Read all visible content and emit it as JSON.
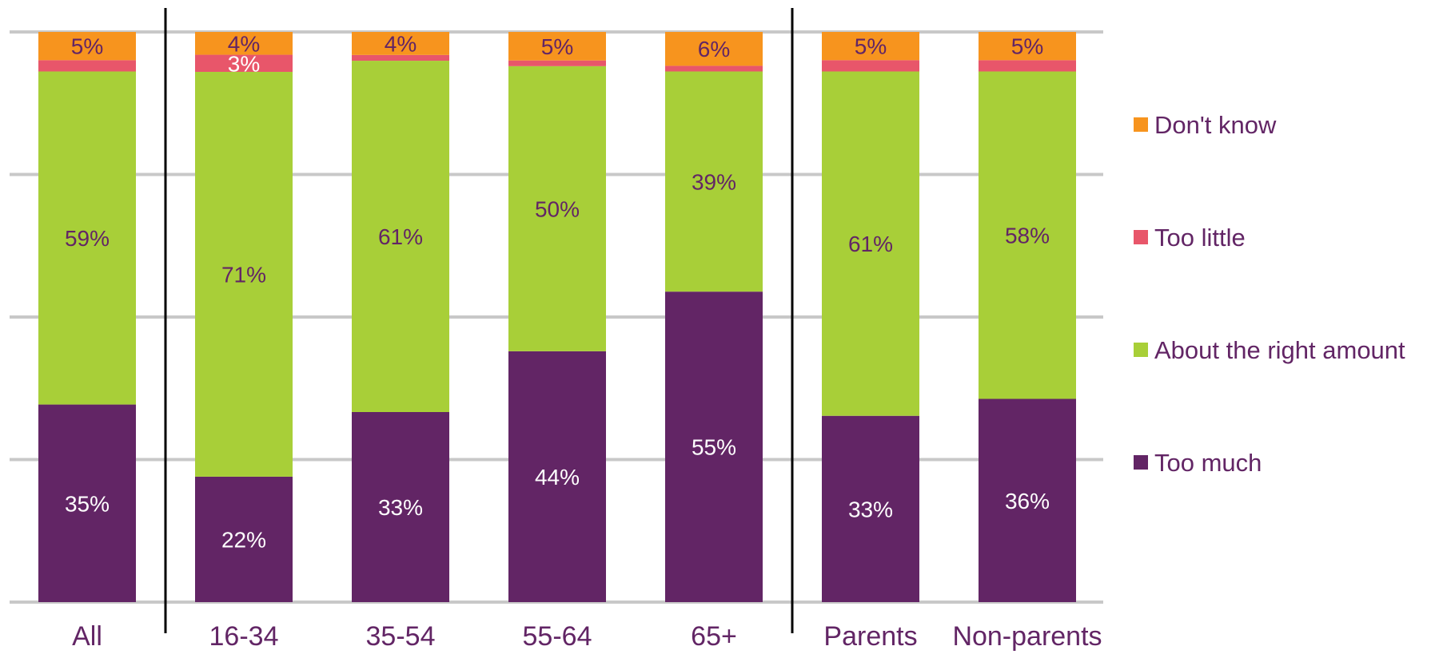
{
  "chart_data": {
    "type": "bar",
    "stacked": true,
    "percent_scale": true,
    "categories": [
      "All",
      "16-34",
      "35-54",
      "55-64",
      "65+",
      "Parents",
      "Non-parents"
    ],
    "group_separators_after": [
      "All",
      "65+"
    ],
    "ylim": [
      0,
      100
    ],
    "grid": true,
    "legend_position": "right",
    "series": [
      {
        "name": "Too much",
        "color": "#622565",
        "label_color": "#ffffff",
        "values": [
          35,
          22,
          33,
          44,
          55,
          33,
          36
        ],
        "labels": [
          "35%",
          "22%",
          "33%",
          "44%",
          "55%",
          "33%",
          "36%"
        ]
      },
      {
        "name": "About the right amount",
        "color": "#a8cf38",
        "label_color": "#622565",
        "values": [
          59,
          71,
          61,
          50,
          39,
          61,
          58
        ],
        "labels": [
          "59%",
          "71%",
          "61%",
          "50%",
          "39%",
          "61%",
          "58%"
        ]
      },
      {
        "name": "Too little",
        "color": "#e8566a",
        "label_color": "#ffffff",
        "values": [
          2,
          3,
          1,
          1,
          1,
          2,
          2
        ],
        "labels": [
          "",
          "3%",
          "",
          "",
          "",
          "",
          ""
        ]
      },
      {
        "name": "Don't know",
        "color": "#f7941e",
        "label_color": "#622565",
        "values": [
          5,
          4,
          4,
          5,
          6,
          5,
          5
        ],
        "labels": [
          "5%",
          "4%",
          "4%",
          "5%",
          "6%",
          "5%",
          "5%"
        ]
      }
    ],
    "legend_order": [
      "Don't know",
      "Too little",
      "About the right amount",
      "Too much"
    ]
  },
  "colors": {
    "text": "#622565",
    "grid": "#c8c8c8",
    "separator": "#000000"
  }
}
